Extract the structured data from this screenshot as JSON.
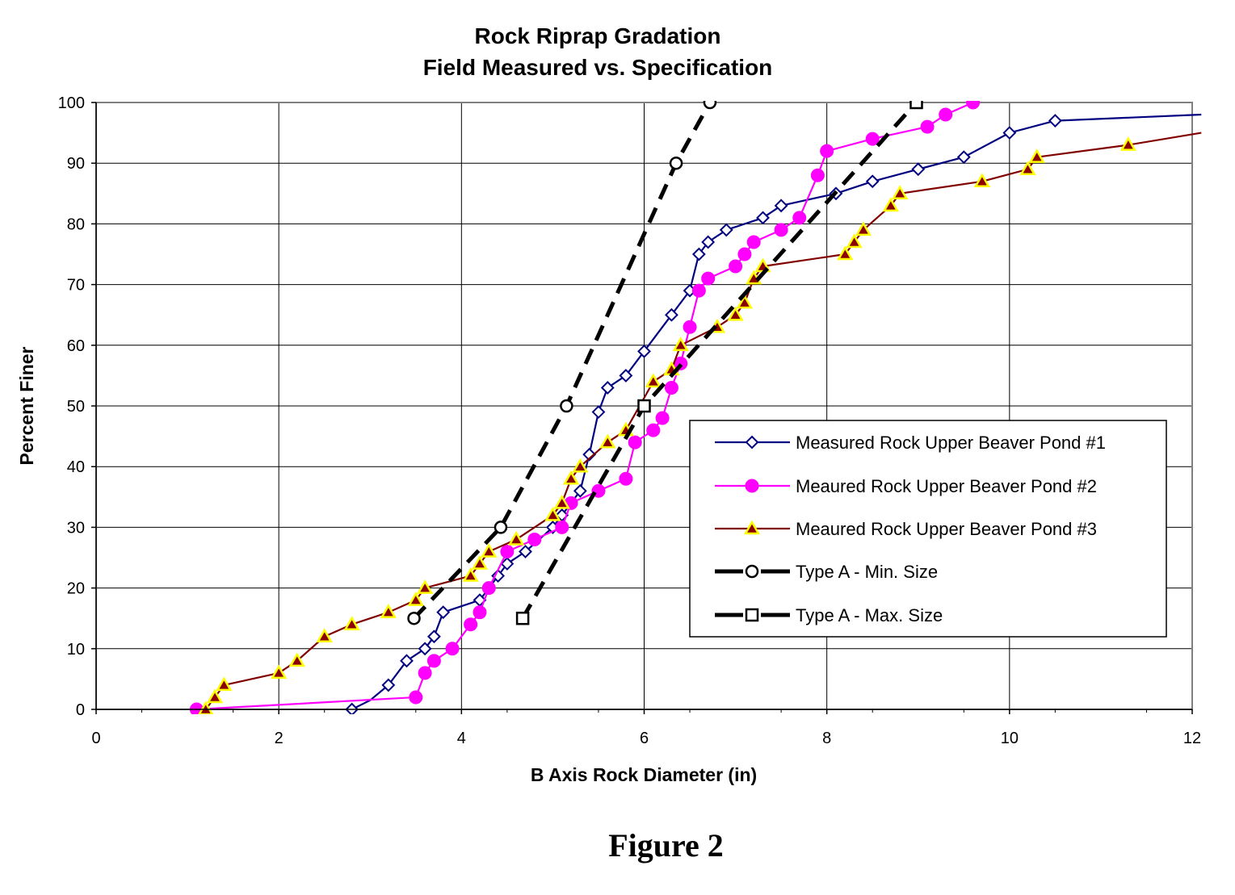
{
  "figure_caption": "Figure 2",
  "chart_data": {
    "type": "line",
    "title_lines": [
      "Rock Riprap Gradation",
      "Field Measured vs. Specification"
    ],
    "xlabel": "B Axis Rock Diameter (in)",
    "ylabel": "Percent Finer",
    "xlim": [
      0,
      12
    ],
    "ylim": [
      0,
      100
    ],
    "x_ticks": [
      "0",
      "2",
      "4",
      "6",
      "8",
      "10",
      "12"
    ],
    "y_ticks": [
      "0",
      "10",
      "20",
      "30",
      "40",
      "50",
      "60",
      "70",
      "80",
      "90",
      "100"
    ],
    "grid": true,
    "legend_position": "right",
    "series": [
      {
        "name": "Measured Rock Upper Beaver Pond #1",
        "color": "#000080",
        "line_style": "solid",
        "marker": "diamond-open",
        "points": [
          [
            2.8,
            0
          ],
          [
            3.0,
            1.5
          ],
          [
            3.2,
            4
          ],
          [
            3.4,
            8
          ],
          [
            3.6,
            10
          ],
          [
            3.7,
            12
          ],
          [
            3.8,
            16
          ],
          [
            4.2,
            18
          ],
          [
            4.4,
            22
          ],
          [
            4.5,
            24
          ],
          [
            4.7,
            26
          ],
          [
            5.0,
            30
          ],
          [
            5.1,
            32
          ],
          [
            5.3,
            36
          ],
          [
            5.4,
            42
          ],
          [
            5.5,
            49
          ],
          [
            5.6,
            53
          ],
          [
            5.8,
            55
          ],
          [
            6.0,
            59
          ],
          [
            6.3,
            65
          ],
          [
            6.5,
            69
          ],
          [
            6.6,
            75
          ],
          [
            6.7,
            77
          ],
          [
            6.9,
            79
          ],
          [
            7.3,
            81
          ],
          [
            7.5,
            83
          ],
          [
            8.1,
            85
          ],
          [
            8.5,
            87
          ],
          [
            9.0,
            89
          ],
          [
            9.5,
            91
          ],
          [
            10.0,
            95
          ],
          [
            10.5,
            97
          ],
          [
            12.1,
            98
          ]
        ],
        "unmarked_points": [
          [
            3.0,
            1.5
          ],
          [
            12.1,
            98
          ]
        ]
      },
      {
        "name": "Meaured Rock Upper Beaver Pond #2",
        "color": "#ff00ff",
        "line_style": "solid",
        "marker": "circle-filled",
        "points": [
          [
            1.1,
            0
          ],
          [
            3.5,
            2
          ],
          [
            3.6,
            6
          ],
          [
            3.7,
            8
          ],
          [
            3.9,
            10
          ],
          [
            4.1,
            14
          ],
          [
            4.2,
            16
          ],
          [
            4.3,
            20
          ],
          [
            4.5,
            26
          ],
          [
            4.8,
            28
          ],
          [
            5.1,
            30
          ],
          [
            5.2,
            34
          ],
          [
            5.5,
            36
          ],
          [
            5.8,
            38
          ],
          [
            5.9,
            44
          ],
          [
            6.1,
            46
          ],
          [
            6.2,
            48
          ],
          [
            6.3,
            53
          ],
          [
            6.4,
            57
          ],
          [
            6.5,
            63
          ],
          [
            6.6,
            69
          ],
          [
            6.7,
            71
          ],
          [
            7.0,
            73
          ],
          [
            7.1,
            75
          ],
          [
            7.2,
            77
          ],
          [
            7.5,
            79
          ],
          [
            7.7,
            81
          ],
          [
            7.9,
            88
          ],
          [
            8.0,
            92
          ],
          [
            8.5,
            94
          ],
          [
            9.1,
            96
          ],
          [
            9.3,
            98
          ],
          [
            9.6,
            100
          ]
        ]
      },
      {
        "name": "Meaured Rock Upper Beaver Pond #3",
        "color": "#800000",
        "line_style": "solid",
        "marker": "triangle-filled",
        "points": [
          [
            1.2,
            0
          ],
          [
            1.3,
            2
          ],
          [
            1.4,
            4
          ],
          [
            2.0,
            6
          ],
          [
            2.2,
            8
          ],
          [
            2.5,
            12
          ],
          [
            2.8,
            14
          ],
          [
            3.2,
            16
          ],
          [
            3.5,
            18
          ],
          [
            3.6,
            20
          ],
          [
            4.1,
            22
          ],
          [
            4.2,
            24
          ],
          [
            4.3,
            26
          ],
          [
            4.6,
            28
          ],
          [
            5.0,
            32
          ],
          [
            5.1,
            34
          ],
          [
            5.2,
            38
          ],
          [
            5.3,
            40
          ],
          [
            5.6,
            44
          ],
          [
            5.8,
            46
          ],
          [
            6.1,
            54
          ],
          [
            6.3,
            56
          ],
          [
            6.4,
            60
          ],
          [
            6.8,
            63
          ],
          [
            7.0,
            65
          ],
          [
            7.1,
            67
          ],
          [
            7.2,
            71
          ],
          [
            7.3,
            73
          ],
          [
            8.2,
            75
          ],
          [
            8.3,
            77
          ],
          [
            8.4,
            79
          ],
          [
            8.7,
            83
          ],
          [
            8.8,
            85
          ],
          [
            9.7,
            87
          ],
          [
            10.2,
            89
          ],
          [
            10.3,
            91
          ],
          [
            11.3,
            93
          ],
          [
            12.1,
            95
          ]
        ],
        "unmarked_points": [
          [
            12.1,
            95
          ]
        ]
      },
      {
        "name": "Type A - Min. Size",
        "color": "#000000",
        "line_style": "dashed",
        "marker": "circle-open",
        "points": [
          [
            3.48,
            15
          ],
          [
            4.43,
            30
          ],
          [
            5.15,
            50
          ],
          [
            6.35,
            90
          ],
          [
            6.72,
            100
          ]
        ]
      },
      {
        "name": "Type A - Max. Size",
        "color": "#000000",
        "line_style": "dashed",
        "marker": "square-open",
        "points": [
          [
            4.67,
            15
          ],
          [
            6.0,
            50
          ],
          [
            8.98,
            100
          ]
        ]
      }
    ]
  }
}
